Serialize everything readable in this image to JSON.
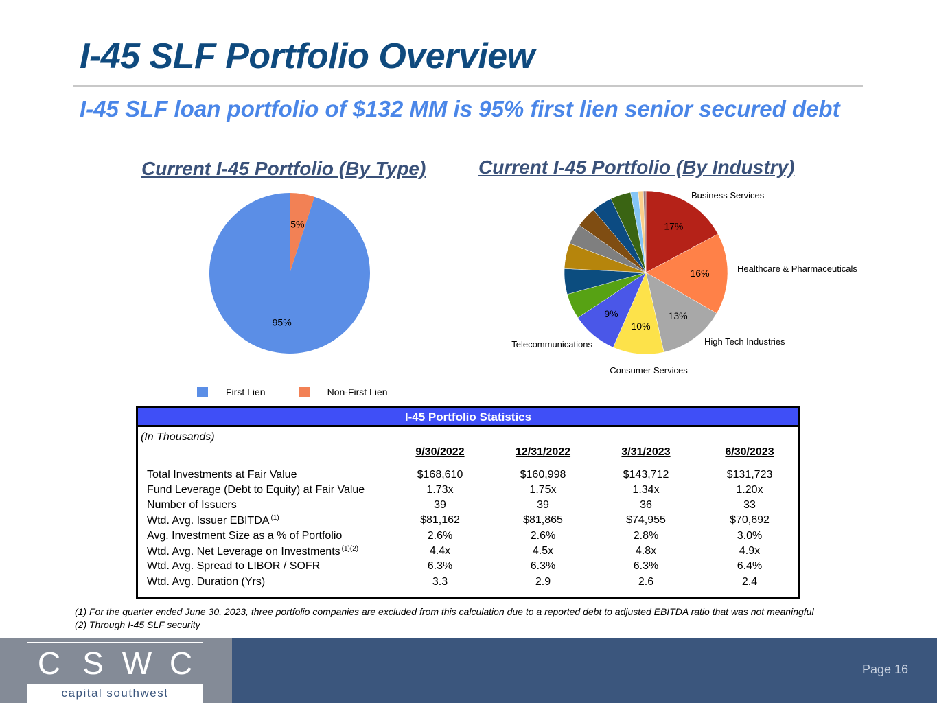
{
  "title": "I-45 SLF Portfolio Overview",
  "subtitle": "I-45 SLF loan portfolio of $132 MM is 95% first lien senior secured debt",
  "chart_data": [
    {
      "type": "pie",
      "title": "Current I-45 Portfolio (By Type)",
      "categories": [
        "First Lien",
        "Non-First Lien"
      ],
      "values": [
        95,
        5
      ],
      "data_labels": [
        "95%",
        "5%"
      ],
      "colors": [
        "#5b8ee6",
        "#f28155"
      ],
      "legend_position": "bottom"
    },
    {
      "type": "pie",
      "title": "Current I-45 Portfolio (By Industry)",
      "values": [
        17,
        16,
        13,
        10,
        9,
        5,
        5,
        5,
        4,
        4,
        4,
        4,
        1.5,
        1,
        0.5
      ],
      "data_labels": [
        "17%",
        "16%",
        "13%",
        "10%",
        "9%",
        "",
        "",
        "",
        "",
        "",
        "",
        "",
        "",
        "",
        ""
      ],
      "category_labels": [
        "Business Services",
        "Healthcare & Pharmaceuticals",
        "High Tech Industries",
        "Consumer Services",
        "Telecommunications"
      ],
      "colors": [
        "#b52218",
        "#ff8148",
        "#a8a8a8",
        "#fde24a",
        "#4a57e8",
        "#57a214",
        "#0c4d7f",
        "#b6850c",
        "#7f7f7f",
        "#7f4d12",
        "#0c4b82",
        "#3a6413",
        "#85c5f5",
        "#fbcf8b",
        "#9c7a7a"
      ]
    }
  ],
  "legend": {
    "items": [
      {
        "label": "First Lien",
        "color": "#5b8ee6"
      },
      {
        "label": "Non-First Lien",
        "color": "#f28155"
      }
    ]
  },
  "stats": {
    "header": "I-45 Portfolio Statistics",
    "unit_note": "(In Thousands)",
    "columns": [
      "9/30/2022",
      "12/31/2022",
      "3/31/2023",
      "6/30/2023"
    ],
    "rows": [
      {
        "label": "Total Investments at Fair Value",
        "sup": "",
        "values": [
          "$168,610",
          "$160,998",
          "$143,712",
          "$131,723"
        ]
      },
      {
        "label": "Fund Leverage (Debt to Equity) at Fair Value",
        "sup": "",
        "values": [
          "1.73x",
          "1.75x",
          "1.34x",
          "1.20x"
        ]
      },
      {
        "label": "Number of Issuers",
        "sup": "",
        "values": [
          "39",
          "39",
          "36",
          "33"
        ]
      },
      {
        "label": "Wtd. Avg. Issuer EBITDA",
        "sup": "(1)",
        "values": [
          "$81,162",
          "$81,865",
          "$74,955",
          "$70,692"
        ]
      },
      {
        "label": "Avg. Investment Size as a % of Portfolio",
        "sup": "",
        "values": [
          "2.6%",
          "2.6%",
          "2.8%",
          "3.0%"
        ]
      },
      {
        "label": "Wtd. Avg. Net Leverage on Investments",
        "sup": "(1)(2)",
        "values": [
          "4.4x",
          "4.5x",
          "4.8x",
          "4.9x"
        ]
      },
      {
        "label": "Wtd. Avg. Spread to LIBOR / SOFR",
        "sup": "",
        "values": [
          "6.3%",
          "6.3%",
          "6.3%",
          "6.4%"
        ]
      },
      {
        "label": "Wtd. Avg. Duration (Yrs)",
        "sup": "",
        "values": [
          "3.3",
          "2.9",
          "2.6",
          "2.4"
        ]
      }
    ]
  },
  "footnotes": [
    "(1) For the quarter ended June 30, 2023, three portfolio companies are excluded from this calculation due to a reported debt to adjusted EBITDA ratio that was not meaningful",
    "(2) Through I-45 SLF security"
  ],
  "footer": {
    "logo_letters": [
      "C",
      "S",
      "W",
      "C"
    ],
    "logo_subtitle": "capital southwest",
    "page_label": "Page 16"
  }
}
